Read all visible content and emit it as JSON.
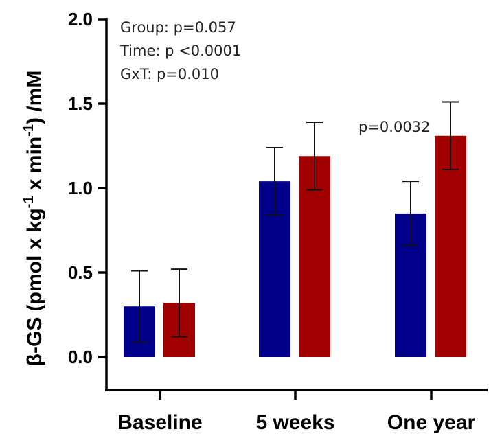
{
  "chart_data": {
    "type": "bar",
    "categories": [
      "Baseline",
      "5 weeks",
      "One year"
    ],
    "series": [
      {
        "color": "#00008b",
        "values": [
          0.3,
          1.04,
          0.85
        ],
        "error": [
          0.21,
          0.2,
          0.19
        ]
      },
      {
        "color": "#a00000",
        "values": [
          0.32,
          1.19,
          1.31
        ],
        "error": [
          0.2,
          0.2,
          0.2
        ]
      }
    ],
    "ylabel_main": "β-GS (pmol x kg",
    "ylabel_sup1": "-1",
    "ylabel_mid": " x min",
    "ylabel_sup2": "-1",
    "ylabel_end": ") /mM",
    "ylim": [
      0,
      2.0
    ],
    "yticks": [
      "0.0",
      "0.5",
      "1.0",
      "1.5",
      "2.0"
    ],
    "ytick_values": [
      0,
      0.5,
      1.0,
      1.5,
      2.0
    ],
    "annotations": {
      "group": "Group: p=0.057",
      "time": "Time: p <0.0001",
      "gxt": "GxT:  p=0.010",
      "one_year_p": "p=0.0032"
    }
  }
}
